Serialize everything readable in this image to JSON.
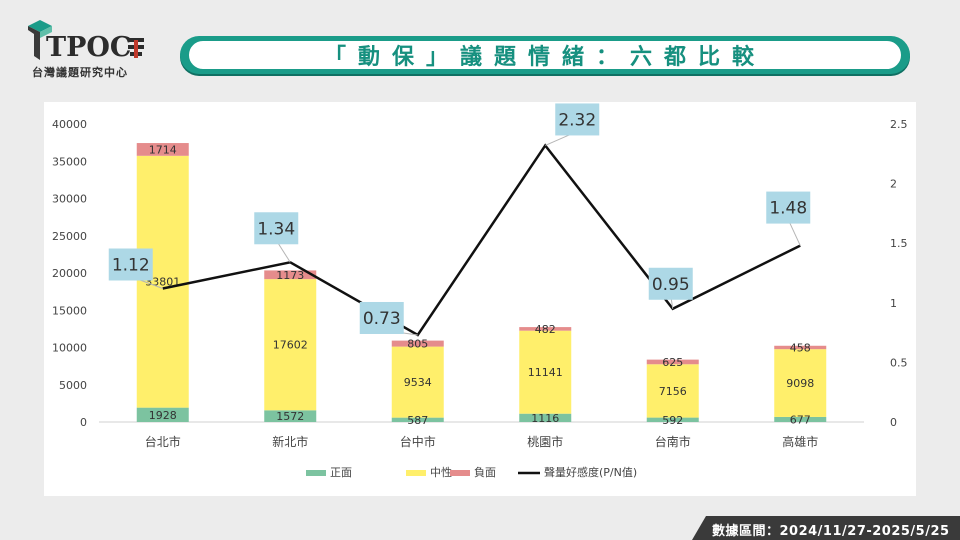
{
  "logo": {
    "mark_text": "TPOC",
    "sub_text": "台灣議題研究中心"
  },
  "title": "「動保」議題情緒：六都比較",
  "footer": "數據區間：2024/11/27-2025/5/25",
  "colors": {
    "positive": "#7cc3a0",
    "neutral": "#ffef6b",
    "negative": "#e58c8c",
    "line": "#111111",
    "callout": "#add8e6",
    "banner": "#1a9c89"
  },
  "chart_data": {
    "type": "bar",
    "stacked": true,
    "categories": [
      "台北市",
      "新北市",
      "台中市",
      "桃園市",
      "台南市",
      "高雄市"
    ],
    "series": [
      {
        "name": "正面",
        "values": [
          1928,
          1572,
          587,
          1116,
          592,
          677
        ]
      },
      {
        "name": "中性",
        "values": [
          33801,
          17602,
          9534,
          11141,
          7156,
          9098
        ]
      },
      {
        "name": "負面",
        "values": [
          1714,
          1173,
          805,
          482,
          625,
          458
        ]
      }
    ],
    "line_series": {
      "name": "聲量好感度(P/N值)",
      "axis": "right",
      "values": [
        1.12,
        1.34,
        0.73,
        2.32,
        0.95,
        1.48
      ]
    },
    "ylim_left": [
      0,
      40000
    ],
    "yticks_left": [
      0,
      5000,
      10000,
      15000,
      20000,
      25000,
      30000,
      35000,
      40000
    ],
    "ylim_right": [
      0,
      2.5
    ],
    "yticks_right": [
      "0",
      "0.5",
      "1",
      "1.5",
      "2",
      "2.5"
    ],
    "grid": false,
    "legend": "bottom"
  }
}
